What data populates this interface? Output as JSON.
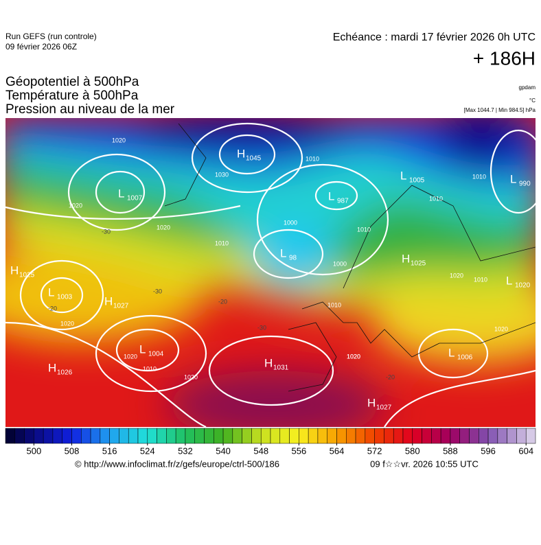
{
  "header": {
    "run": "Run GEFS (run controle)",
    "run_date": "09 février 2026 06Z",
    "valid": "Echéance : mardi 17 février 2026 0h UTC",
    "lead": "+ 186H",
    "fields": [
      "Géopotentiel à 500hPa",
      "Température à 500hPa",
      "Pression au niveau de la mer"
    ],
    "units": [
      "gpdam",
      "°C",
      "[Max 1044.7 | Min 984.5] hPa"
    ]
  },
  "map": {
    "centers": [
      {
        "kind": "H",
        "value": "1045"
      },
      {
        "kind": "L",
        "value": "1007"
      },
      {
        "kind": "L",
        "value": "987"
      },
      {
        "kind": "L",
        "value": "1005"
      },
      {
        "kind": "L",
        "value": "990"
      },
      {
        "kind": "L",
        "value": "98"
      },
      {
        "kind": "H",
        "value": "1025"
      },
      {
        "kind": "L",
        "value": "1003"
      },
      {
        "kind": "H",
        "value": "1027"
      },
      {
        "kind": "H",
        "value": "1025"
      },
      {
        "kind": "L",
        "value": "1020"
      },
      {
        "kind": "L",
        "value": "1004"
      },
      {
        "kind": "L",
        "value": "1006"
      },
      {
        "kind": "H",
        "value": "1026"
      },
      {
        "kind": "H",
        "value": "1031"
      },
      {
        "kind": "H",
        "value": "1027"
      }
    ],
    "contour_labels": [
      "1020",
      "1030",
      "1010",
      "1020",
      "1020",
      "1010",
      "1000",
      "1010",
      "1000",
      "1010",
      "1010",
      "1020",
      "1010",
      "1010",
      "1020",
      "1020",
      "1020",
      "1010",
      "1020",
      "1020",
      "1020",
      "-30",
      "-30",
      "-20",
      "-20",
      "-30",
      "-20"
    ]
  },
  "colorbar": {
    "range": [
      494,
      606
    ],
    "ticks": [
      500,
      508,
      516,
      524,
      532,
      540,
      548,
      556,
      564,
      572,
      580,
      588,
      596,
      604
    ],
    "step": 2,
    "color_stops": [
      {
        "value": 494,
        "color": "#000028"
      },
      {
        "value": 500,
        "color": "#0a0a80"
      },
      {
        "value": 508,
        "color": "#1020e0"
      },
      {
        "value": 516,
        "color": "#20a0f0"
      },
      {
        "value": 524,
        "color": "#20e0d8"
      },
      {
        "value": 532,
        "color": "#20c060"
      },
      {
        "value": 540,
        "color": "#40b020"
      },
      {
        "value": 548,
        "color": "#c8e020"
      },
      {
        "value": 556,
        "color": "#f8f020"
      },
      {
        "value": 564,
        "color": "#f8a000"
      },
      {
        "value": 572,
        "color": "#f04000"
      },
      {
        "value": 580,
        "color": "#e00020"
      },
      {
        "value": 588,
        "color": "#a00060"
      },
      {
        "value": 596,
        "color": "#8050b0"
      },
      {
        "value": 606,
        "color": "#e0d8ec"
      }
    ]
  },
  "footer": {
    "url": "© http://www.infoclimat.fr/z/gefs/europe/ctrl-500/186",
    "stamp": "09 f☆☆vr. 2026 10:55 UTC"
  }
}
